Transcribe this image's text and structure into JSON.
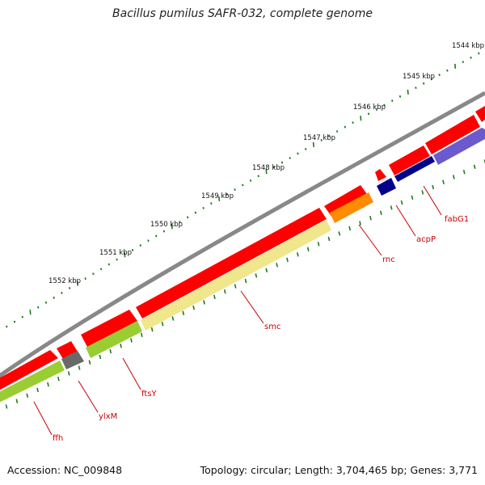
{
  "title": "Bacillus pumilus SAFR-032, complete genome",
  "footer": {
    "accession": "Accession: NC_009848",
    "summary": "Topology: circular; Length: 3,704,465 bp; Genes: 3,771"
  },
  "scale_labels": [
    "1544 kbp",
    "1545 kbp",
    "1546 kbp",
    "1547 kbp",
    "1548 kbp",
    "1549 kbp",
    "1550 kbp",
    "1551 kbp",
    "1552 kbp"
  ],
  "gene_labels": [
    "fabG1",
    "acpP",
    "rnc",
    "smc",
    "ftsY",
    "ylxM",
    "ffh"
  ],
  "colors": {
    "backbone": "#808080",
    "cds_forward": "#ff0000",
    "scale_tick": "#1f7a1f",
    "label": "#cc0000",
    "leader": "#cc0000",
    "smc": "#f0e68c",
    "rnc": "#ff8c00",
    "fabG1": "#6a5acd",
    "acpP": "#00008b",
    "ftsY": "#9acd32",
    "ffh": "#9acd32",
    "ylxM": "#696969"
  }
}
